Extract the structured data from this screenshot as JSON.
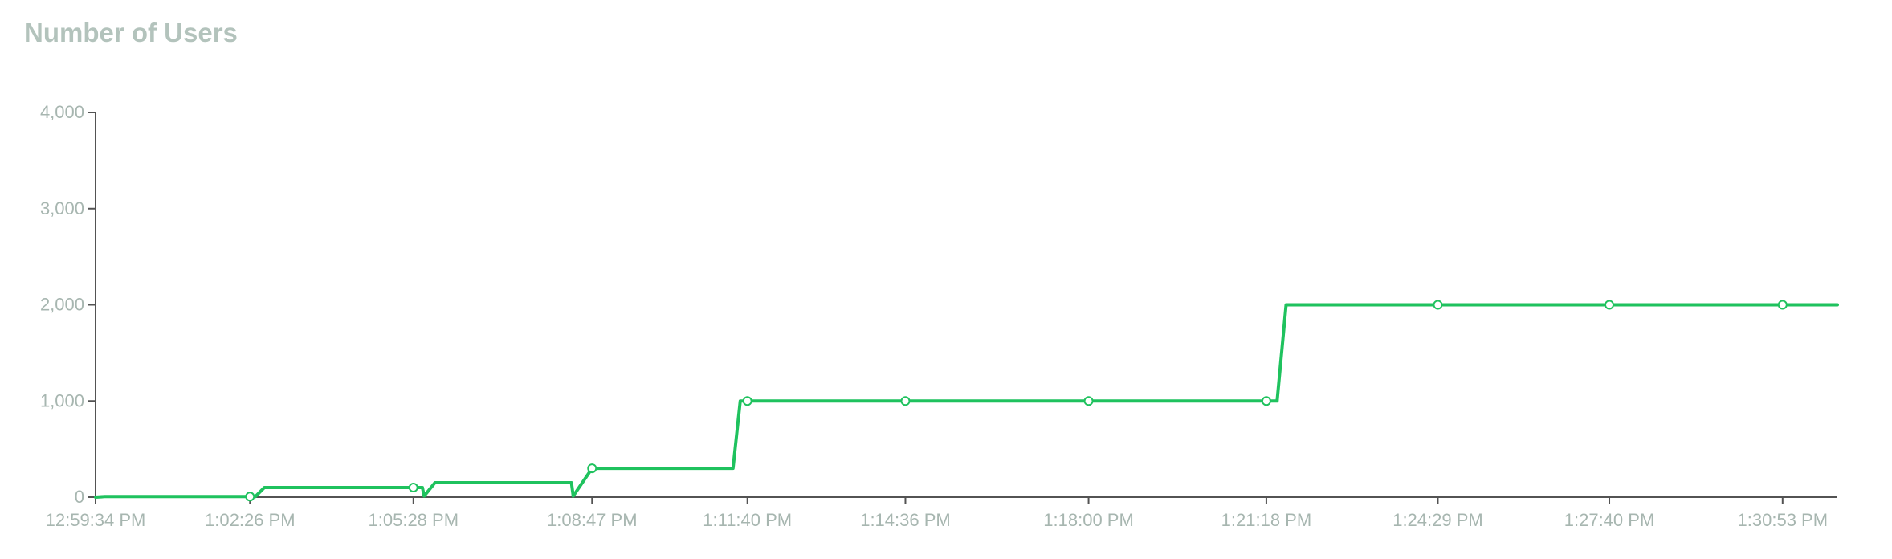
{
  "chart_data": {
    "type": "line",
    "title": "Number of Users",
    "xlabel": "",
    "ylabel": "",
    "ylim": [
      0,
      4000
    ],
    "y_ticks": [
      0,
      1000,
      2000,
      3000,
      4000
    ],
    "y_tick_labels": [
      "0",
      "1,000",
      "2,000",
      "3,000",
      "4,000"
    ],
    "x_ticks": [
      "12:59:34 PM",
      "1:02:26 PM",
      "1:05:28 PM",
      "1:08:47 PM",
      "1:11:40 PM",
      "1:14:36 PM",
      "1:18:00 PM",
      "1:21:18 PM",
      "1:24:29 PM",
      "1:27:40 PM",
      "1:30:53 PM"
    ],
    "x_tick_values": [
      0,
      172,
      354,
      553,
      726,
      902,
      1106,
      1304,
      1495,
      1686,
      1879
    ],
    "x_unit": "seconds after 12:59:34 PM",
    "series": [
      {
        "name": "",
        "color": "#1fc25e",
        "x": [
          0,
          10,
          172,
          178,
          188,
          340,
          354,
          364,
          366,
          378,
          530,
          532,
          553,
          560,
          710,
          714,
          718,
          726,
          902,
          1106,
          1304,
          1316,
          1326,
          1495,
          1686,
          1879,
          1940
        ],
        "y": [
          0,
          6,
          6,
          6,
          100,
          100,
          100,
          100,
          12,
          150,
          150,
          12,
          300,
          300,
          300,
          650,
          1000,
          1000,
          1000,
          1000,
          1000,
          1000,
          2000,
          2000,
          2000,
          2000,
          2000
        ],
        "markers_x": [
          172,
          354,
          553,
          726,
          902,
          1106,
          1304,
          1495,
          1686,
          1879
        ],
        "markers_y": [
          6,
          100,
          300,
          1000,
          1000,
          1000,
          1000,
          2000,
          2000,
          2000
        ]
      }
    ],
    "grid": false,
    "legend": "none"
  }
}
